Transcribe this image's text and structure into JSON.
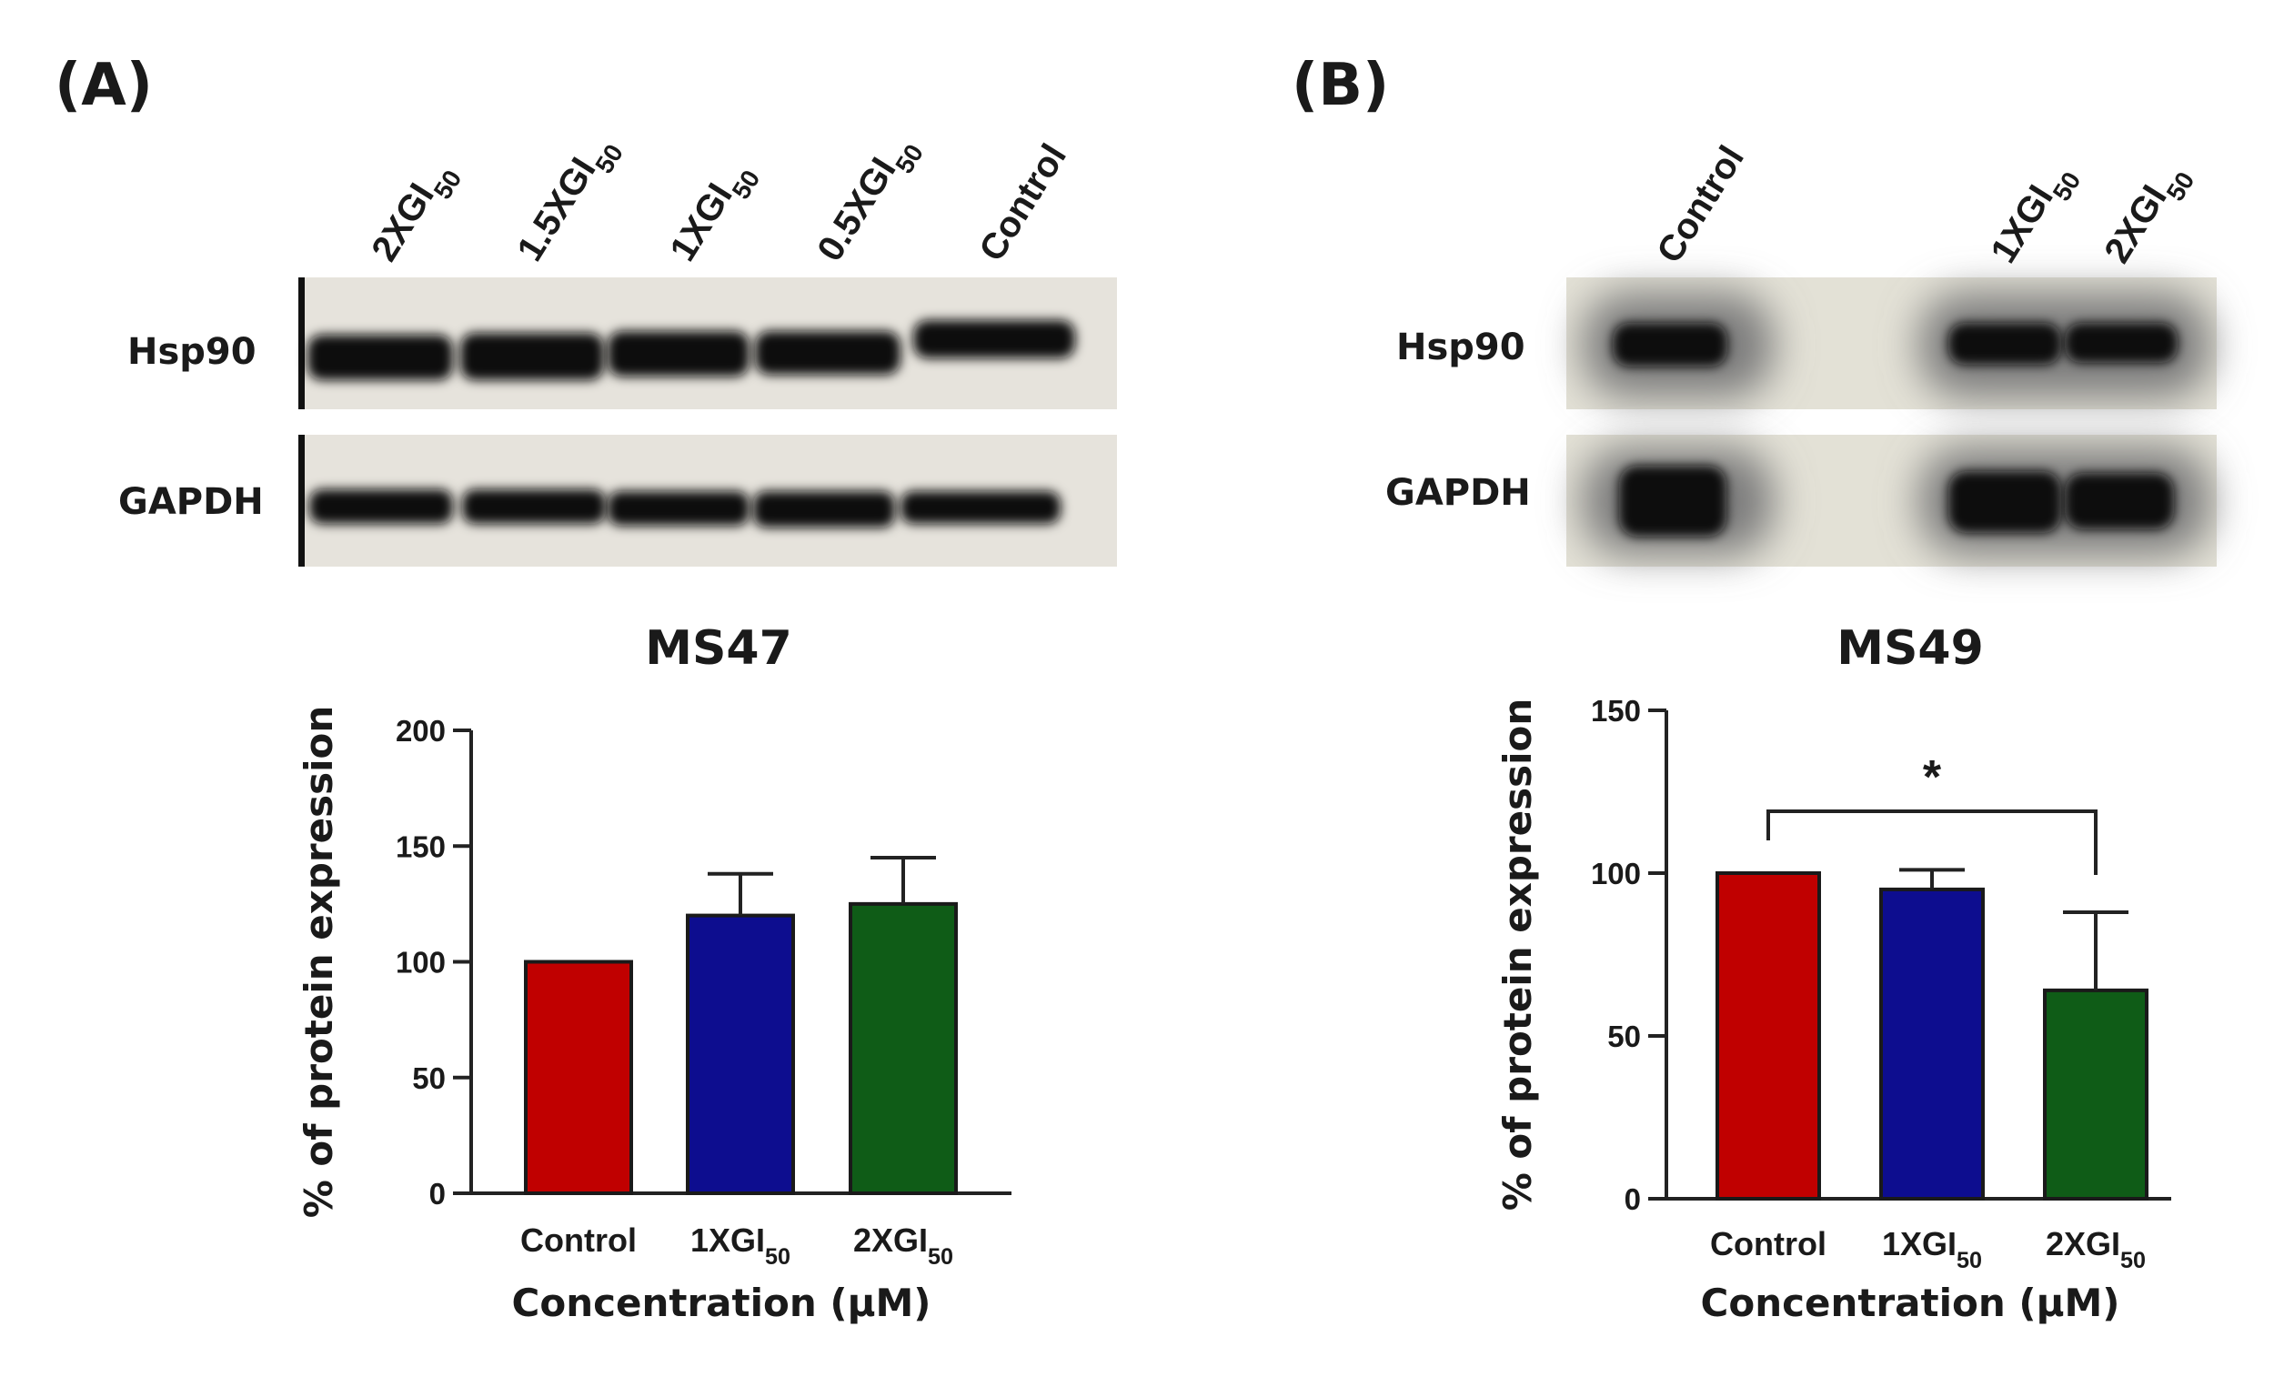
{
  "panel_a": {
    "label": "(A)",
    "lanes": [
      "2XGI50",
      "1.5XGI50",
      "1XGI50",
      "0.5XGI50",
      "Control"
    ],
    "proteins": [
      "Hsp90",
      "GAPDH"
    ]
  },
  "panel_b": {
    "label": "(B)",
    "lanes": [
      "Control",
      "1XGI50",
      "2XGI50"
    ],
    "proteins": [
      "Hsp90",
      "GAPDH"
    ]
  },
  "colors": {
    "control": "#c00000",
    "dose_1x": "#0d0d8f",
    "dose_2x": "#0f5c17",
    "axis": "#222222"
  },
  "chart_data": [
    {
      "type": "bar",
      "title": "MS47",
      "ylabel": "% of protein expression",
      "xlabel": "Concentration (µM)",
      "categories": [
        "Control",
        "1XGI50",
        "2XGI50"
      ],
      "values": [
        100,
        120,
        125
      ],
      "errors": [
        0,
        18,
        20
      ],
      "ylim": [
        0,
        200
      ],
      "yticks": [
        0,
        50,
        100,
        150,
        200
      ],
      "significance": null
    },
    {
      "type": "bar",
      "title": "MS49",
      "ylabel": "% of protein expression",
      "xlabel": "Concentration (µM)",
      "categories": [
        "Control",
        "1XGI50",
        "2XGI50"
      ],
      "values": [
        100,
        95,
        64
      ],
      "errors": [
        0,
        6,
        24
      ],
      "ylim": [
        0,
        150
      ],
      "yticks": [
        0,
        50,
        100,
        150
      ],
      "significance": {
        "from": 0,
        "to": 2,
        "label": "*"
      }
    }
  ]
}
